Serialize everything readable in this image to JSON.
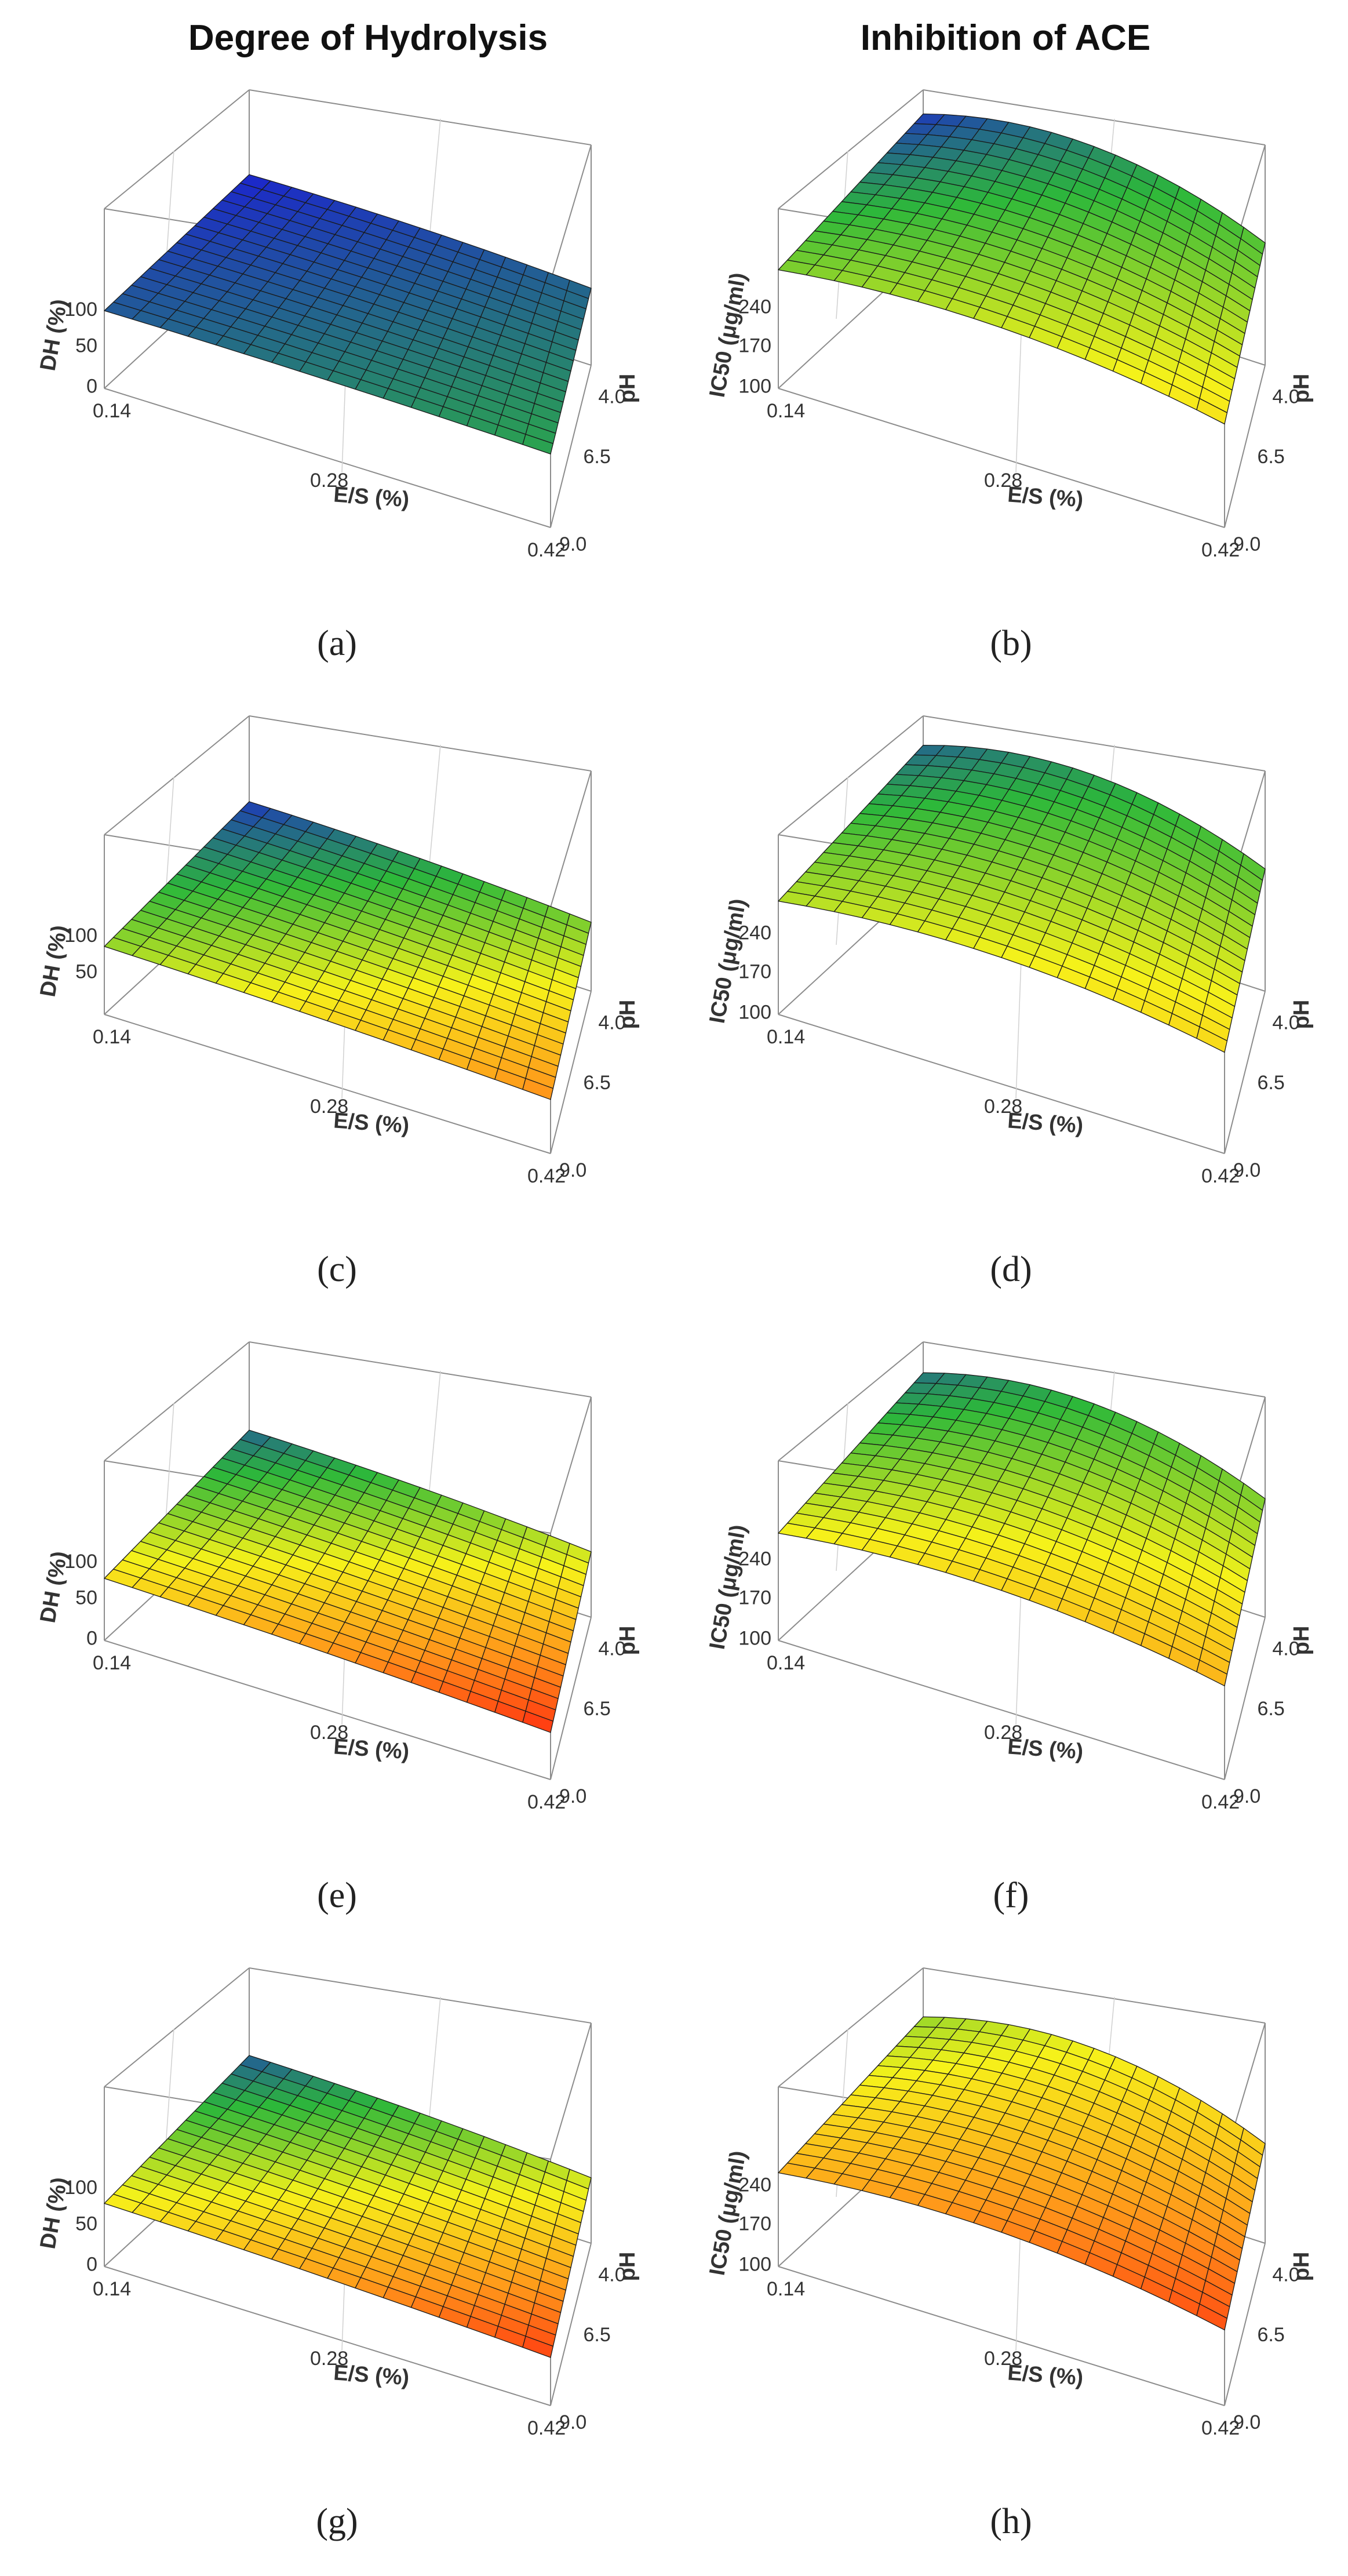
{
  "columns": {
    "left": "Degree of Hydrolysis",
    "right": "Inhibition  of ACE"
  },
  "colors": {
    "blue": "#1a1ad8",
    "green": "#2db83a",
    "yellow": "#f6f21a",
    "orange": "#ff9a1a",
    "red": "#ff2a10",
    "grid": "#1a1a1a",
    "box": "#8c8c8c"
  },
  "chart_data": [
    {
      "label": "(a)",
      "type": "surface",
      "variant": "DH",
      "xlabel": "E/S (%)",
      "ylabel": "pH",
      "zlabel": "DH (%)",
      "xticks": [
        "0.14",
        "0.28",
        "0.42"
      ],
      "yticks": [
        "4.0",
        "6.5",
        "9.0"
      ],
      "zticks": [
        "0",
        "50",
        "100"
      ],
      "xlim": [
        0.14,
        0.42
      ],
      "ylim": [
        4.0,
        9.0
      ],
      "zlim": [
        0,
        100
      ],
      "colorscale": [
        "blue",
        "green",
        "yellow",
        "orange",
        "red"
      ],
      "corners": {
        "es0.14_pH4.0": 0.02,
        "es0.42_pH4.0": 0.12,
        "es0.14_pH9.0": 0.1,
        "es0.42_pH9.0": 0.22
      },
      "grid_size": [
        16,
        16
      ]
    },
    {
      "label": "(b)",
      "type": "surface",
      "variant": "IC50",
      "xlabel": "E/S (%)",
      "ylabel": "pH",
      "zlabel": "IC50 (μg/ml)",
      "xticks": [
        "0.14",
        "0.28",
        "0.42"
      ],
      "yticks": [
        "4.0",
        "6.5",
        "9.0"
      ],
      "zticks": [
        "100",
        "170",
        "240"
      ],
      "xlim": [
        0.14,
        0.42
      ],
      "ylim": [
        4.0,
        9.0
      ],
      "zlim": [
        100,
        240
      ],
      "colorscale": [
        "blue",
        "green",
        "yellow",
        "orange",
        "red"
      ],
      "corners": {
        "es0.14_pH4.0": 0.05,
        "es0.42_pH4.0": 0.3,
        "es0.14_pH9.0": 0.35,
        "es0.42_pH9.0": 0.55
      },
      "grid_size": [
        16,
        16
      ]
    },
    {
      "label": "(c)",
      "type": "surface",
      "variant": "DH",
      "xlabel": "E/S (%)",
      "ylabel": "pH",
      "zlabel": "DH (%)",
      "xticks": [
        "0.14",
        "0.28",
        "0.42"
      ],
      "yticks": [
        "4.0",
        "6.5",
        "9.0"
      ],
      "zticks": [
        "50",
        "100"
      ],
      "xlim": [
        0.14,
        0.42
      ],
      "ylim": [
        4.0,
        9.0
      ],
      "zlim": [
        0,
        100
      ],
      "colorscale": [
        "blue",
        "green",
        "yellow",
        "orange",
        "red"
      ],
      "corners": {
        "es0.14_pH4.0": 0.05,
        "es0.42_pH4.0": 0.35,
        "es0.14_pH9.0": 0.38,
        "es0.42_pH9.0": 0.78
      },
      "grid_size": [
        16,
        16
      ]
    },
    {
      "label": "(d)",
      "type": "surface",
      "variant": "IC50",
      "xlabel": "E/S (%)",
      "ylabel": "pH",
      "zlabel": "IC50 (μg/ml)",
      "xticks": [
        "0.14",
        "0.28",
        "0.42"
      ],
      "yticks": [
        "4.0",
        "6.5",
        "9.0"
      ],
      "zticks": [
        "100",
        "170",
        "240"
      ],
      "xlim": [
        0.14,
        0.42
      ],
      "ylim": [
        4.0,
        9.0
      ],
      "zlim": [
        100,
        240
      ],
      "colorscale": [
        "blue",
        "green",
        "yellow",
        "orange",
        "red"
      ],
      "corners": {
        "es0.14_pH4.0": 0.12,
        "es0.42_pH4.0": 0.3,
        "es0.14_pH9.0": 0.42,
        "es0.42_pH9.0": 0.58
      },
      "grid_size": [
        16,
        16
      ]
    },
    {
      "label": "(e)",
      "type": "surface",
      "variant": "DH",
      "xlabel": "E/S (%)",
      "ylabel": "pH",
      "zlabel": "DH (%)",
      "xticks": [
        "0.14",
        "0.28",
        "0.42"
      ],
      "yticks": [
        "4.0",
        "6.5",
        "9.0"
      ],
      "zticks": [
        "0",
        "50",
        "100"
      ],
      "xlim": [
        0.14,
        0.42
      ],
      "ylim": [
        4.0,
        9.0
      ],
      "zlim": [
        0,
        100
      ],
      "colorscale": [
        "blue",
        "green",
        "yellow",
        "orange",
        "red"
      ],
      "corners": {
        "es0.14_pH4.0": 0.12,
        "es0.42_pH4.0": 0.45,
        "es0.14_pH9.0": 0.55,
        "es0.42_pH9.0": 0.98
      },
      "grid_size": [
        16,
        16
      ]
    },
    {
      "label": "(f)",
      "type": "surface",
      "variant": "IC50",
      "xlabel": "E/S (%)",
      "ylabel": "pH",
      "zlabel": "IC50 (μg/ml)",
      "xticks": [
        "0.14",
        "0.28",
        "0.42"
      ],
      "yticks": [
        "4.0",
        "6.5",
        "9.0"
      ],
      "zticks": [
        "100",
        "170",
        "240"
      ],
      "xlim": [
        0.14,
        0.42
      ],
      "ylim": [
        4.0,
        9.0
      ],
      "zlim": [
        100,
        240
      ],
      "colorscale": [
        "blue",
        "green",
        "yellow",
        "orange",
        "red"
      ],
      "corners": {
        "es0.14_pH4.0": 0.14,
        "es0.42_pH4.0": 0.35,
        "es0.14_pH9.0": 0.5,
        "es0.42_pH9.0": 0.68
      },
      "grid_size": [
        16,
        16
      ]
    },
    {
      "label": "(g)",
      "type": "surface",
      "variant": "DH",
      "xlabel": "E/S (%)",
      "ylabel": "pH",
      "zlabel": "DH (%)",
      "xticks": [
        "0.14",
        "0.28",
        "0.42"
      ],
      "yticks": [
        "4.0",
        "6.5",
        "9.0"
      ],
      "zticks": [
        "0",
        "50",
        "100"
      ],
      "xlim": [
        0.14,
        0.42
      ],
      "ylim": [
        4.0,
        9.0
      ],
      "zlim": [
        0,
        100
      ],
      "colorscale": [
        "blue",
        "green",
        "yellow",
        "orange",
        "red"
      ],
      "corners": {
        "es0.14_pH4.0": 0.1,
        "es0.42_pH4.0": 0.45,
        "es0.14_pH9.0": 0.52,
        "es0.42_pH9.0": 0.95
      },
      "grid_size": [
        16,
        16
      ]
    },
    {
      "label": "(h)",
      "type": "surface",
      "variant": "IC50",
      "xlabel": "E/S (%)",
      "ylabel": "pH",
      "zlabel": "IC50 (μg/ml)",
      "xticks": [
        "0.14",
        "0.28",
        "0.42"
      ],
      "yticks": [
        "4.0",
        "6.5",
        "9.0"
      ],
      "zticks": [
        "100",
        "170",
        "240"
      ],
      "xlim": [
        0.14,
        0.42
      ],
      "ylim": [
        4.0,
        9.0
      ],
      "zlim": [
        100,
        240
      ],
      "colorscale": [
        "blue",
        "green",
        "yellow",
        "orange",
        "red"
      ],
      "corners": {
        "es0.14_pH4.0": 0.38,
        "es0.42_pH4.0": 0.6,
        "es0.14_pH9.0": 0.68,
        "es0.42_pH9.0": 0.92
      },
      "grid_size": [
        16,
        16
      ]
    }
  ]
}
